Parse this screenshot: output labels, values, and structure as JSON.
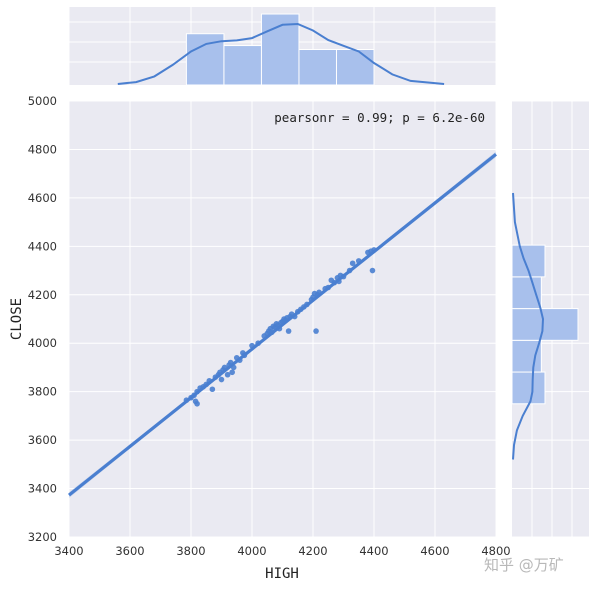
{
  "chart_data": {
    "type": "scatter",
    "xlabel": "HIGH",
    "ylabel": "CLOSE",
    "xlim": [
      3400,
      4800
    ],
    "ylim": [
      3200,
      5000
    ],
    "xticks": [
      3400,
      3600,
      3800,
      4000,
      4200,
      4400,
      4600,
      4800
    ],
    "yticks": [
      3200,
      3400,
      3600,
      3800,
      4000,
      4200,
      4400,
      4600,
      4800,
      5000
    ],
    "annotation": "pearsonr = 0.99; p = 6.2e-60",
    "grid": true,
    "colors": {
      "points": "#4a7fd0",
      "fit_line": "#4a7fd0",
      "hist_fill": "#a8c0ec",
      "background": "#eaeaf2"
    },
    "points": [
      [
        3785,
        3765
      ],
      [
        3800,
        3775
      ],
      [
        3810,
        3785
      ],
      [
        3815,
        3760
      ],
      [
        3820,
        3750
      ],
      [
        3820,
        3800
      ],
      [
        3830,
        3815
      ],
      [
        3840,
        3820
      ],
      [
        3850,
        3830
      ],
      [
        3860,
        3845
      ],
      [
        3870,
        3810
      ],
      [
        3880,
        3860
      ],
      [
        3890,
        3870
      ],
      [
        3895,
        3880
      ],
      [
        3900,
        3850
      ],
      [
        3905,
        3890
      ],
      [
        3910,
        3900
      ],
      [
        3920,
        3870
      ],
      [
        3925,
        3910
      ],
      [
        3930,
        3920
      ],
      [
        3935,
        3880
      ],
      [
        3940,
        3900
      ],
      [
        3950,
        3940
      ],
      [
        3960,
        3930
      ],
      [
        3970,
        3960
      ],
      [
        3975,
        3950
      ],
      [
        4000,
        3990
      ],
      [
        4020,
        4000
      ],
      [
        4040,
        4030
      ],
      [
        4050,
        4040
      ],
      [
        4055,
        4050
      ],
      [
        4060,
        4060
      ],
      [
        4065,
        4045
      ],
      [
        4070,
        4070
      ],
      [
        4075,
        4065
      ],
      [
        4080,
        4080
      ],
      [
        4085,
        4075
      ],
      [
        4090,
        4060
      ],
      [
        4095,
        4085
      ],
      [
        4100,
        4090
      ],
      [
        4105,
        4100
      ],
      [
        4110,
        4095
      ],
      [
        4115,
        4105
      ],
      [
        4120,
        4050
      ],
      [
        4125,
        4110
      ],
      [
        4130,
        4120
      ],
      [
        4140,
        4110
      ],
      [
        4150,
        4130
      ],
      [
        4160,
        4140
      ],
      [
        4170,
        4150
      ],
      [
        4180,
        4160
      ],
      [
        4195,
        4180
      ],
      [
        4200,
        4190
      ],
      [
        4205,
        4205
      ],
      [
        4210,
        4050
      ],
      [
        4215,
        4200
      ],
      [
        4220,
        4210
      ],
      [
        4240,
        4225
      ],
      [
        4250,
        4230
      ],
      [
        4260,
        4260
      ],
      [
        4270,
        4250
      ],
      [
        4280,
        4270
      ],
      [
        4285,
        4255
      ],
      [
        4290,
        4280
      ],
      [
        4300,
        4275
      ],
      [
        4320,
        4300
      ],
      [
        4330,
        4330
      ],
      [
        4350,
        4340
      ],
      [
        4380,
        4375
      ],
      [
        4390,
        4380
      ],
      [
        4395,
        4300
      ],
      [
        4400,
        4385
      ]
    ],
    "fit_line": {
      "x": [
        3400,
        4800
      ],
      "y": [
        3373,
        4780
      ]
    },
    "x_histogram": {
      "bin_edges": [
        3785,
        3908,
        4031,
        4154,
        4277,
        4400
      ],
      "counts": [
        13,
        10,
        18,
        9,
        9
      ]
    },
    "x_kde": {
      "x": [
        3560,
        3620,
        3680,
        3740,
        3800,
        3850,
        3900,
        3950,
        4000,
        4050,
        4100,
        4150,
        4200,
        4250,
        4300,
        4350,
        4400,
        4460,
        4520,
        4630
      ],
      "density": [
        0,
        0.05,
        0.2,
        0.5,
        0.85,
        1.05,
        1.12,
        1.14,
        1.2,
        1.38,
        1.55,
        1.57,
        1.4,
        1.15,
        1.0,
        0.85,
        0.55,
        0.25,
        0.08,
        0
      ]
    },
    "y_histogram": {
      "bin_edges": [
        3750,
        3881,
        4012,
        4143,
        4274,
        4405
      ],
      "counts": [
        9,
        8,
        18,
        8,
        9
      ]
    },
    "y_kde": {
      "y": [
        3520,
        3580,
        3640,
        3700,
        3760,
        3800,
        3850,
        3900,
        3950,
        4000,
        4050,
        4100,
        4150,
        4200,
        4250,
        4300,
        4350,
        4400,
        4500,
        4620
      ],
      "density": [
        0,
        0.05,
        0.2,
        0.5,
        0.9,
        1.0,
        1.02,
        1.05,
        1.15,
        1.35,
        1.52,
        1.55,
        1.4,
        1.2,
        1.0,
        0.8,
        0.55,
        0.35,
        0.1,
        0
      ]
    }
  },
  "watermark": "知乎 @万矿"
}
